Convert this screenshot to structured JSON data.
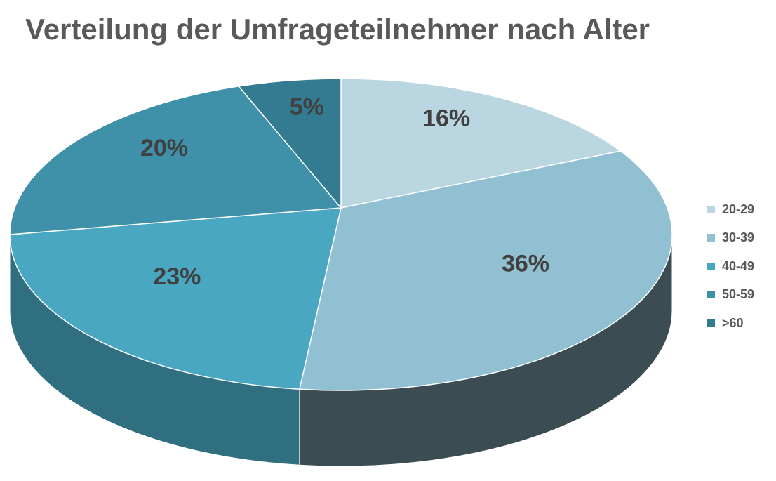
{
  "chart_data": {
    "type": "pie",
    "title": "Verteilung der Umfrageteilnehmer nach Alter",
    "categories": [
      "20-29",
      "30-39",
      "40-49",
      "50-59",
      ">60"
    ],
    "values": [
      16,
      36,
      23,
      20,
      5
    ],
    "labels": [
      "16%",
      "36%",
      "23%",
      "20%",
      "5%"
    ],
    "colors": [
      "#bad6e0",
      "#92c0d3",
      "#4aa7c1",
      "#3f90a9",
      "#327b90"
    ],
    "side_colors": [
      "#8aa5af",
      "#3b4c52",
      "#2f6f80",
      "#2e6a7c",
      "#265c6c"
    ],
    "legend_position": "right",
    "style": "3d"
  }
}
